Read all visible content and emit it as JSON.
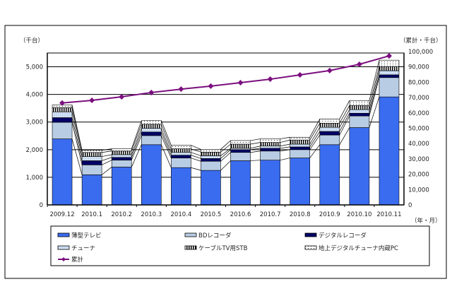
{
  "chart_data": {
    "type": "bar",
    "stacked": true,
    "categories": [
      "2009.12",
      "2010.1",
      "2010.2",
      "2010.3",
      "2010.4",
      "2010.5",
      "2010.6",
      "2010.7",
      "2010.8",
      "2010.9",
      "2010.10",
      "2010.11"
    ],
    "ylabel": "（千台）",
    "y2label": "（累計・千台）",
    "xlabel": "（年・月）",
    "ylim": [
      0,
      5500
    ],
    "y2lim": [
      0,
      100000
    ],
    "yticks": [
      "0",
      "1,000",
      "2,000",
      "3,000",
      "4,000",
      "5,000"
    ],
    "y2ticks": [
      "0",
      "10,000",
      "20,000",
      "30,000",
      "40,000",
      "50,000",
      "60,000",
      "70,000",
      "80,000",
      "90,000",
      "100,000"
    ],
    "grid": true,
    "legend_position": "bottom",
    "series": [
      {
        "name": "薄型テレビ",
        "color": "#3a6cf0",
        "pattern": "solid",
        "values": [
          2390,
          1090,
          1370,
          2180,
          1350,
          1250,
          1600,
          1620,
          1700,
          2180,
          2800,
          3910
        ]
      },
      {
        "name": "BDレコーダ",
        "color": "#b8cce4",
        "pattern": "solid",
        "values": [
          600,
          360,
          250,
          330,
          350,
          330,
          300,
          330,
          300,
          350,
          420,
          700
        ]
      },
      {
        "name": "デジタルレコーダ",
        "color": "#000066",
        "pattern": "solid",
        "values": [
          170,
          150,
          100,
          130,
          100,
          100,
          100,
          100,
          100,
          130,
          100,
          100
        ]
      },
      {
        "name": "チューナ",
        "color": "#c6d9f1",
        "pattern": "dots",
        "values": [
          210,
          150,
          100,
          130,
          100,
          100,
          50,
          80,
          100,
          150,
          130,
          150
        ]
      },
      {
        "name": "ケーブルTV用STB",
        "color": "#ffffff",
        "pattern": "vstripes",
        "values": [
          150,
          150,
          130,
          150,
          130,
          130,
          150,
          130,
          150,
          150,
          150,
          150
        ]
      },
      {
        "name": "地上デジタルチューナ内蔵PC",
        "color": "#ffffff",
        "pattern": "sparsedots",
        "values": [
          100,
          80,
          80,
          130,
          130,
          100,
          130,
          130,
          100,
          150,
          180,
          230
        ]
      }
    ],
    "line": {
      "name": "累計",
      "color": "#7b0f7f",
      "axis": "right",
      "values": [
        66500,
        68200,
        70500,
        73300,
        75500,
        77500,
        79700,
        82000,
        84800,
        87600,
        91700,
        97200
      ]
    }
  }
}
